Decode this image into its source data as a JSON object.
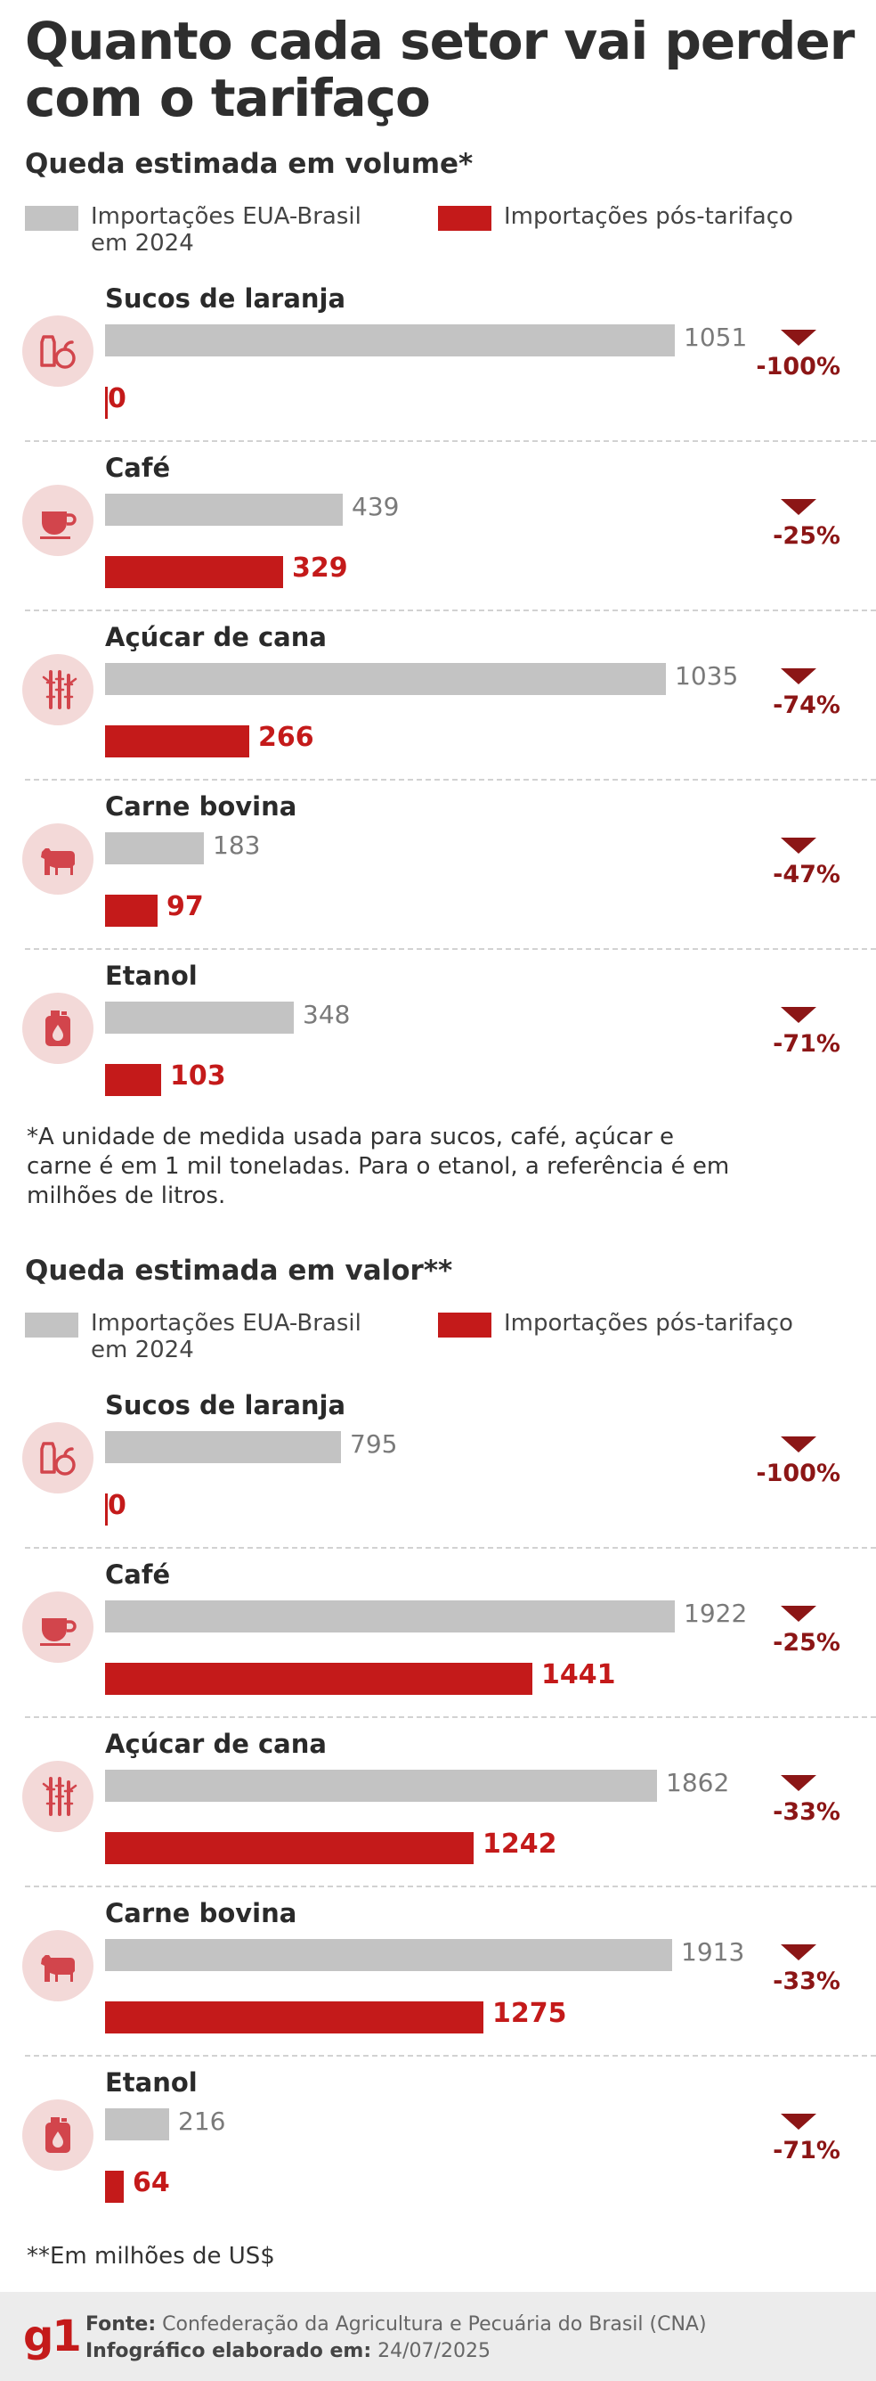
{
  "title": "Quanto cada setor vai perder com o tarifaço",
  "colors": {
    "before": "#c3c3c3",
    "after": "#c41a1a",
    "drop": "#8c1616",
    "icon_bg": "#f3d9d8",
    "icon_fg": "#d2454c"
  },
  "chart_data": [
    {
      "type": "bar",
      "title": "Queda estimada em volume*",
      "legend": [
        "Importações EUA-Brasil em 2024",
        "Importações pós-tarifaço"
      ],
      "legend_placement": "top",
      "categories": [
        "Sucos de laranja",
        "Café",
        "Açúcar de cana",
        "Carne bovina",
        "Etanol"
      ],
      "icons": [
        "orange-juice-icon",
        "coffee-cup-icon",
        "sugar-cane-icon",
        "cow-icon",
        "ethanol-can-icon"
      ],
      "series": [
        {
          "name": "Importações EUA-Brasil em 2024",
          "values": [
            1051,
            439,
            1035,
            183,
            348
          ]
        },
        {
          "name": "Importações pós-tarifaço",
          "values": [
            0,
            329,
            266,
            97,
            103
          ]
        }
      ],
      "drops": [
        "-100%",
        "-25%",
        "-74%",
        "-47%",
        "-71%"
      ],
      "xlim": [
        0,
        1051
      ],
      "note": "*A unidade de medida usada para sucos, café, açúcar e carne é em 1 mil toneladas. Para o etanol, a referência é em milhões de litros."
    },
    {
      "type": "bar",
      "title": "Queda estimada em valor**",
      "legend": [
        "Importações EUA-Brasil em 2024",
        "Importações pós-tarifaço"
      ],
      "legend_placement": "top",
      "categories": [
        "Sucos de laranja",
        "Café",
        "Açúcar de cana",
        "Carne bovina",
        "Etanol"
      ],
      "icons": [
        "orange-juice-icon",
        "coffee-cup-icon",
        "sugar-cane-icon",
        "cow-icon",
        "ethanol-can-icon"
      ],
      "series": [
        {
          "name": "Importações EUA-Brasil em 2024",
          "values": [
            795,
            1922,
            1862,
            1913,
            216
          ]
        },
        {
          "name": "Importações pós-tarifaço",
          "values": [
            0,
            1441,
            1242,
            1275,
            64
          ]
        }
      ],
      "drops": [
        "-100%",
        "-25%",
        "-33%",
        "-33%",
        "-71%"
      ],
      "xlim": [
        0,
        1922
      ],
      "note": "**Em milhões de US$"
    }
  ],
  "footer": {
    "logo": "g1",
    "source_label": "Fonte:",
    "source": "Confederação da Agricultura e Pecuária do Brasil (CNA)",
    "date_label": "Infográfico elaborado em:",
    "date": "24/07/2025"
  }
}
